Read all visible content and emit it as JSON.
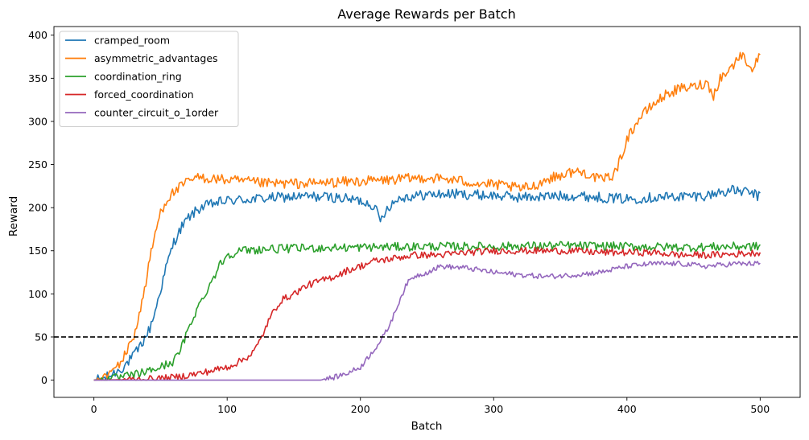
{
  "chart_data": {
    "type": "line",
    "title": "Average Rewards per Batch",
    "xlabel": "Batch",
    "ylabel": "Reward",
    "xlim": [
      -30,
      530
    ],
    "ylim": [
      -20,
      410
    ],
    "xticks": [
      0,
      100,
      200,
      300,
      400,
      500
    ],
    "yticks": [
      0,
      50,
      100,
      150,
      200,
      250,
      300,
      350,
      400
    ],
    "grid": false,
    "legend_position": "top-left",
    "reference_line": {
      "y": 50,
      "style": "dashed",
      "color": "#000000"
    },
    "series": [
      {
        "name": "cramped_room",
        "color": "#1f77b4",
        "noise": 6,
        "points": [
          [
            0,
            0
          ],
          [
            8,
            2
          ],
          [
            15,
            8
          ],
          [
            22,
            15
          ],
          [
            28,
            25
          ],
          [
            33,
            35
          ],
          [
            38,
            48
          ],
          [
            42,
            60
          ],
          [
            46,
            80
          ],
          [
            50,
            105
          ],
          [
            55,
            135
          ],
          [
            60,
            160
          ],
          [
            66,
            178
          ],
          [
            72,
            190
          ],
          [
            80,
            200
          ],
          [
            90,
            205
          ],
          [
            100,
            208
          ],
          [
            120,
            210
          ],
          [
            140,
            212
          ],
          [
            160,
            213
          ],
          [
            180,
            212
          ],
          [
            190,
            210
          ],
          [
            200,
            208
          ],
          [
            210,
            203
          ],
          [
            215,
            185
          ],
          [
            220,
            200
          ],
          [
            230,
            212
          ],
          [
            250,
            215
          ],
          [
            270,
            216
          ],
          [
            300,
            214
          ],
          [
            320,
            212
          ],
          [
            340,
            213
          ],
          [
            360,
            214
          ],
          [
            380,
            212
          ],
          [
            400,
            210
          ],
          [
            420,
            212
          ],
          [
            440,
            213
          ],
          [
            460,
            214
          ],
          [
            470,
            218
          ],
          [
            480,
            220
          ],
          [
            490,
            218
          ],
          [
            495,
            216
          ],
          [
            500,
            212
          ]
        ]
      },
      {
        "name": "asymmetric_advantages",
        "color": "#ff7f0e",
        "noise": 6,
        "points": [
          [
            0,
            0
          ],
          [
            8,
            3
          ],
          [
            15,
            12
          ],
          [
            22,
            25
          ],
          [
            26,
            38
          ],
          [
            30,
            52
          ],
          [
            34,
            75
          ],
          [
            38,
            105
          ],
          [
            42,
            140
          ],
          [
            46,
            170
          ],
          [
            50,
            195
          ],
          [
            55,
            210
          ],
          [
            60,
            218
          ],
          [
            66,
            225
          ],
          [
            72,
            232
          ],
          [
            80,
            235
          ],
          [
            100,
            232
          ],
          [
            130,
            228
          ],
          [
            160,
            228
          ],
          [
            190,
            230
          ],
          [
            220,
            232
          ],
          [
            250,
            235
          ],
          [
            270,
            232
          ],
          [
            290,
            228
          ],
          [
            310,
            225
          ],
          [
            320,
            222
          ],
          [
            330,
            225
          ],
          [
            340,
            233
          ],
          [
            360,
            242
          ],
          [
            370,
            240
          ],
          [
            380,
            232
          ],
          [
            390,
            238
          ],
          [
            395,
            255
          ],
          [
            400,
            280
          ],
          [
            410,
            305
          ],
          [
            420,
            320
          ],
          [
            430,
            332
          ],
          [
            440,
            338
          ],
          [
            450,
            340
          ],
          [
            460,
            345
          ],
          [
            465,
            330
          ],
          [
            470,
            350
          ],
          [
            480,
            365
          ],
          [
            485,
            378
          ],
          [
            490,
            370
          ],
          [
            495,
            360
          ],
          [
            500,
            380
          ]
        ]
      },
      {
        "name": "coordination_ring",
        "color": "#2ca02c",
        "noise": 5,
        "points": [
          [
            0,
            0
          ],
          [
            10,
            1
          ],
          [
            20,
            3
          ],
          [
            30,
            6
          ],
          [
            40,
            10
          ],
          [
            50,
            15
          ],
          [
            60,
            22
          ],
          [
            65,
            35
          ],
          [
            70,
            55
          ],
          [
            75,
            75
          ],
          [
            80,
            90
          ],
          [
            85,
            105
          ],
          [
            90,
            120
          ],
          [
            95,
            135
          ],
          [
            100,
            145
          ],
          [
            110,
            150
          ],
          [
            130,
            152
          ],
          [
            160,
            153
          ],
          [
            200,
            154
          ],
          [
            250,
            155
          ],
          [
            300,
            155
          ],
          [
            350,
            156
          ],
          [
            400,
            155
          ],
          [
            450,
            154
          ],
          [
            480,
            155
          ],
          [
            500,
            155
          ]
        ]
      },
      {
        "name": "forced_coordination",
        "color": "#d62728",
        "noise": 4,
        "points": [
          [
            0,
            0
          ],
          [
            40,
            1
          ],
          [
            60,
            3
          ],
          [
            80,
            8
          ],
          [
            100,
            15
          ],
          [
            110,
            22
          ],
          [
            118,
            30
          ],
          [
            122,
            38
          ],
          [
            126,
            50
          ],
          [
            130,
            65
          ],
          [
            135,
            80
          ],
          [
            140,
            92
          ],
          [
            150,
            100
          ],
          [
            160,
            110
          ],
          [
            170,
            115
          ],
          [
            180,
            120
          ],
          [
            190,
            127
          ],
          [
            200,
            132
          ],
          [
            210,
            138
          ],
          [
            220,
            140
          ],
          [
            240,
            145
          ],
          [
            260,
            145
          ],
          [
            280,
            148
          ],
          [
            300,
            150
          ],
          [
            320,
            150
          ],
          [
            340,
            150
          ],
          [
            360,
            150
          ],
          [
            380,
            148
          ],
          [
            400,
            148
          ],
          [
            420,
            148
          ],
          [
            440,
            145
          ],
          [
            460,
            145
          ],
          [
            480,
            146
          ],
          [
            500,
            148
          ]
        ]
      },
      {
        "name": "counter_circuit_o_1order",
        "color": "#9467bd",
        "noise": 3,
        "start_noise_x": 170,
        "points": [
          [
            0,
            0
          ],
          [
            170,
            0
          ],
          [
            180,
            3
          ],
          [
            190,
            8
          ],
          [
            200,
            15
          ],
          [
            205,
            25
          ],
          [
            210,
            35
          ],
          [
            215,
            45
          ],
          [
            220,
            58
          ],
          [
            225,
            75
          ],
          [
            230,
            95
          ],
          [
            235,
            112
          ],
          [
            240,
            120
          ],
          [
            250,
            125
          ],
          [
            260,
            132
          ],
          [
            280,
            130
          ],
          [
            300,
            125
          ],
          [
            320,
            122
          ],
          [
            340,
            120
          ],
          [
            360,
            122
          ],
          [
            380,
            125
          ],
          [
            400,
            132
          ],
          [
            420,
            135
          ],
          [
            440,
            135
          ],
          [
            460,
            132
          ],
          [
            480,
            135
          ],
          [
            500,
            135
          ]
        ]
      }
    ]
  }
}
